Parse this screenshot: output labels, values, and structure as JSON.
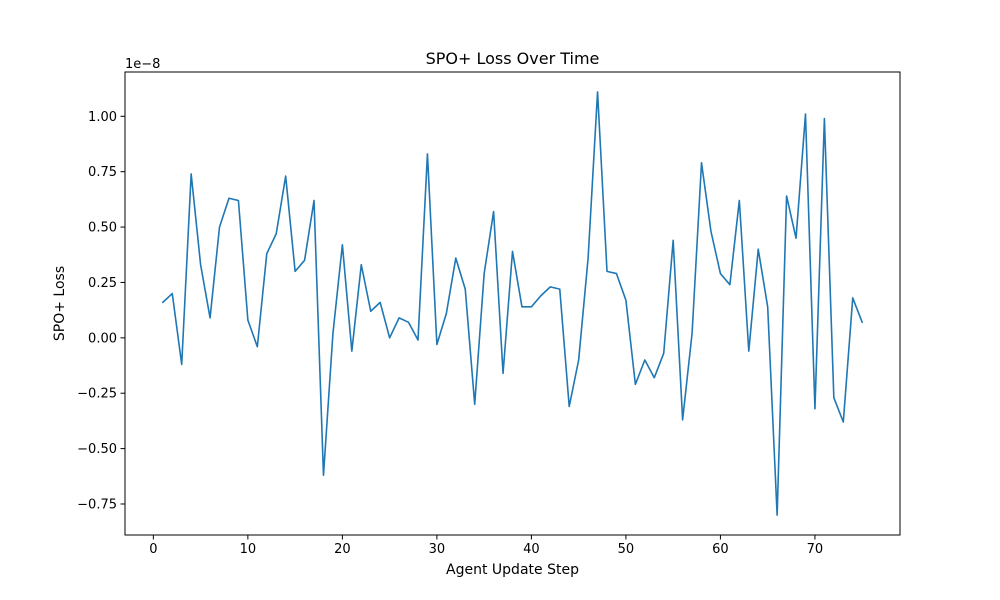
{
  "chart_data": {
    "type": "line",
    "title": "SPO+ Loss Over Time",
    "xlabel": "Agent Update Step",
    "ylabel": "SPO+ Loss",
    "y_offset_text": "1e−8",
    "xlim": [
      -3,
      79
    ],
    "ylim": [
      -0.89,
      1.2
    ],
    "x_ticks": [
      0,
      10,
      20,
      30,
      40,
      50,
      60,
      70
    ],
    "y_ticks": [
      -0.75,
      -0.5,
      -0.25,
      0.0,
      0.25,
      0.5,
      0.75,
      1.0
    ],
    "y_tick_labels": [
      "−0.75",
      "−0.50",
      "−0.25",
      "0.00",
      "0.25",
      "0.50",
      "0.75",
      "1.00"
    ],
    "grid": false,
    "series": [
      {
        "color": "#1f77b4",
        "x": [
          1,
          2,
          3,
          4,
          5,
          6,
          7,
          8,
          9,
          10,
          11,
          12,
          13,
          14,
          15,
          16,
          17,
          18,
          19,
          20,
          21,
          22,
          23,
          24,
          25,
          26,
          27,
          28,
          29,
          30,
          31,
          32,
          33,
          34,
          35,
          36,
          37,
          38,
          39,
          40,
          41,
          42,
          43,
          44,
          45,
          46,
          47,
          48,
          49,
          50,
          51,
          52,
          53,
          54,
          55,
          56,
          57,
          58,
          59,
          60,
          61,
          62,
          63,
          64,
          65,
          66,
          67,
          68,
          69,
          70,
          71,
          72,
          73,
          74,
          75
        ],
        "y": [
          0.16,
          0.2,
          -0.12,
          0.74,
          0.33,
          0.09,
          0.5,
          0.63,
          0.62,
          0.08,
          -0.04,
          0.38,
          0.47,
          0.73,
          0.3,
          0.35,
          0.62,
          -0.62,
          0.02,
          0.42,
          -0.06,
          0.33,
          0.12,
          0.16,
          0.0,
          0.09,
          0.07,
          -0.01,
          0.83,
          -0.03,
          0.11,
          0.36,
          0.22,
          -0.3,
          0.29,
          0.57,
          -0.16,
          0.39,
          0.14,
          0.14,
          0.19,
          0.23,
          0.22,
          -0.31,
          -0.1,
          0.36,
          1.11,
          0.3,
          0.29,
          0.17,
          -0.21,
          -0.1,
          -0.18,
          -0.07,
          0.44,
          -0.37,
          0.02,
          0.79,
          0.48,
          0.29,
          0.24,
          0.62,
          -0.06,
          0.4,
          0.14,
          -0.8,
          0.64,
          0.45,
          1.01,
          -0.32,
          0.99,
          -0.27,
          -0.38,
          0.18,
          0.07
        ]
      }
    ]
  }
}
